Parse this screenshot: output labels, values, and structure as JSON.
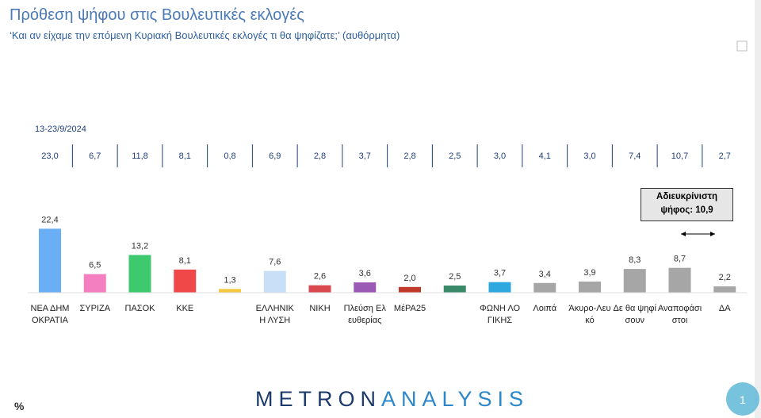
{
  "chart_data": {
    "type": "bar",
    "title": "Πρόθεση ψήφου στις Βουλευτικές εκλογές",
    "subtitle": "‘Και αν είχαμε την επόμενη Κυριακή Βουλευτικές εκλογές τι θα ψηφίζατε;’ (αυθόρμητα)",
    "categories": [
      "ΝΕΑ ΔΗΜΟΚΡΑΤΙΑ",
      "ΣΥΡΙΖΑ",
      "ΠΑΣΟΚ",
      "ΚΚΕ",
      null,
      "ΕΛΛΗΝΙΚΗ ΛΥΣΗ",
      "ΝΙΚΗ",
      "Πλεύση Ελευθερίας",
      "ΜέΡΑ25",
      null,
      "ΦΩΝΗ ΛΟΓΙΚΗΣ",
      "Λοιπά",
      "Άκυρο-Λευκό",
      "Δε θα ψηφίσουν",
      "Αναποφάσιστοι",
      "ΔΑ"
    ],
    "series": [
      {
        "name": "13-23/9/2024",
        "values": [
          23.0,
          6.7,
          11.8,
          8.1,
          0.8,
          6.9,
          2.8,
          3.7,
          2.8,
          2.5,
          3.0,
          4.1,
          3.0,
          7.4,
          10.7,
          2.7
        ],
        "value_labels": [
          "23,0",
          "6,7",
          "11,8",
          "8,1",
          "0,8",
          "6,9",
          "2,8",
          "3,7",
          "2,8",
          "2,5",
          "3,0",
          "4,1",
          "3,0",
          "7,4",
          "10,7",
          "2,7"
        ]
      },
      {
        "values": [
          22.4,
          6.5,
          13.2,
          8.1,
          1.3,
          7.6,
          2.6,
          3.6,
          2.0,
          2.5,
          3.7,
          3.4,
          3.9,
          8.3,
          8.7,
          2.2
        ],
        "value_labels": [
          "22,4",
          "6,5",
          "13,2",
          "8,1",
          "1,3",
          "7,6",
          "2,6",
          "3,6",
          "2,0",
          "2,5",
          "3,7",
          "3,4",
          "3,9",
          "8,3",
          "8,7",
          "2,2"
        ],
        "colors": [
          "#6aaef5",
          "#f47fc0",
          "#3ec96e",
          "#f04848",
          "#f5c842",
          "#c9dff7",
          "#d9474f",
          "#9b59b6",
          "#c0392b",
          "#3a8a6a",
          "#2fa8e0",
          "#a6a6a6",
          "#a6a6a6",
          "#a6a6a6",
          "#a6a6a6",
          "#a6a6a6"
        ]
      }
    ],
    "annotation": "Αδιευκρίνιστη ψήφος: 10,9",
    "unit_label": "%",
    "brand": [
      "METRON",
      "ANALYSIS"
    ],
    "page_number": "1"
  }
}
